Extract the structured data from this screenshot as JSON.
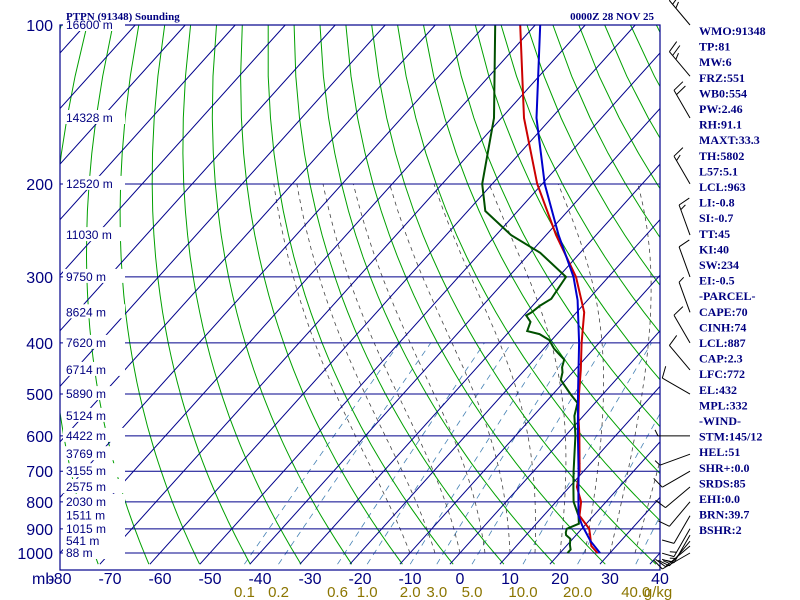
{
  "header": {
    "station_title": "PTPN (91348) Sounding",
    "valid_time": "0000Z 28 NOV 25"
  },
  "chart_data": {
    "type": "line",
    "title": "PTPN (91348) Sounding",
    "subtitle": "0000Z 28 NOV 25",
    "x_axis": {
      "label": "mb",
      "ticks": [
        "-80",
        "-70",
        "-60",
        "-50",
        "-40",
        "-30",
        "-20",
        "-10",
        "0",
        "10",
        "20",
        "30",
        "40"
      ],
      "range": [
        -80,
        40
      ]
    },
    "y_axis": {
      "scale": "log",
      "ticks": [
        "100",
        "200",
        "300",
        "400",
        "500",
        "600",
        "700",
        "800",
        "900",
        "1000"
      ],
      "range": [
        100,
        1050
      ]
    },
    "mixing_ratio_ticks": [
      "0.1",
      "0.2",
      "0.6",
      "1.0",
      "2.0",
      "3.0",
      "5.0",
      "10.0",
      "20.0",
      "40.0",
      "g/kg"
    ],
    "height_labels": [
      {
        "p": 100,
        "label": "16600 m"
      },
      {
        "p": 150,
        "label": "14328 m"
      },
      {
        "p": 200,
        "label": "12520 m"
      },
      {
        "p": 250,
        "label": "11030 m"
      },
      {
        "p": 300,
        "label": "9750 m"
      },
      {
        "p": 350,
        "label": "8624 m"
      },
      {
        "p": 400,
        "label": "7620 m"
      },
      {
        "p": 450,
        "label": "6714 m"
      },
      {
        "p": 500,
        "label": "5890 m"
      },
      {
        "p": 550,
        "label": "5124 m"
      },
      {
        "p": 600,
        "label": "4422 m"
      },
      {
        "p": 650,
        "label": "3769 m"
      },
      {
        "p": 700,
        "label": "3155 m"
      },
      {
        "p": 750,
        "label": "2575 m"
      },
      {
        "p": 800,
        "label": "2030 m"
      },
      {
        "p": 850,
        "label": "1511 m"
      },
      {
        "p": 900,
        "label": "1015 m"
      },
      {
        "p": 950,
        "label": "541 m"
      },
      {
        "p": 1000,
        "label": "88 m"
      }
    ],
    "series": [
      {
        "name": "Temperature",
        "color": "#cc0000",
        "points": [
          {
            "p": 1000,
            "t": 27.5
          },
          {
            "p": 970,
            "t": 25.0
          },
          {
            "p": 925,
            "t": 22.8
          },
          {
            "p": 900,
            "t": 21.5
          },
          {
            "p": 850,
            "t": 17.2
          },
          {
            "p": 800,
            "t": 15.0
          },
          {
            "p": 750,
            "t": 11.5
          },
          {
            "p": 700,
            "t": 9.2
          },
          {
            "p": 600,
            "t": 2.8
          },
          {
            "p": 550,
            "t": -1.0
          },
          {
            "p": 500,
            "t": -4.8
          },
          {
            "p": 450,
            "t": -8.8
          },
          {
            "p": 400,
            "t": -13.5
          },
          {
            "p": 350,
            "t": -18.5
          },
          {
            "p": 300,
            "t": -26.5
          },
          {
            "p": 250,
            "t": -38.0
          },
          {
            "p": 200,
            "t": -51.0
          },
          {
            "p": 150,
            "t": -65.5
          },
          {
            "p": 100,
            "t": -83.0
          }
        ]
      },
      {
        "name": "Dewpoint",
        "color": "#005000",
        "points": [
          {
            "p": 1000,
            "t": 21.5
          },
          {
            "p": 985,
            "t": 21.5
          },
          {
            "p": 965,
            "t": 20.5
          },
          {
            "p": 940,
            "t": 19.5
          },
          {
            "p": 925,
            "t": 18.0
          },
          {
            "p": 915,
            "t": 17.5
          },
          {
            "p": 900,
            "t": 17.0
          },
          {
            "p": 880,
            "t": 18.5
          },
          {
            "p": 850,
            "t": 17.0
          },
          {
            "p": 800,
            "t": 13.5
          },
          {
            "p": 750,
            "t": 10.8
          },
          {
            "p": 700,
            "t": 8.0
          },
          {
            "p": 600,
            "t": 2.0
          },
          {
            "p": 550,
            "t": -1.8
          },
          {
            "p": 520,
            "t": -3.5
          },
          {
            "p": 500,
            "t": -6.5
          },
          {
            "p": 480,
            "t": -9.5
          },
          {
            "p": 470,
            "t": -11.0
          },
          {
            "p": 455,
            "t": -12.0
          },
          {
            "p": 445,
            "t": -13.0
          },
          {
            "p": 430,
            "t": -14.0
          },
          {
            "p": 420,
            "t": -16.0
          },
          {
            "p": 410,
            "t": -18.0
          },
          {
            "p": 395,
            "t": -20.5
          },
          {
            "p": 385,
            "t": -23.5
          },
          {
            "p": 380,
            "t": -26.5
          },
          {
            "p": 365,
            "t": -27.5
          },
          {
            "p": 355,
            "t": -29.5
          },
          {
            "p": 350,
            "t": -29.0
          },
          {
            "p": 340,
            "t": -28.5
          },
          {
            "p": 330,
            "t": -27.5
          },
          {
            "p": 300,
            "t": -28.5
          },
          {
            "p": 270,
            "t": -38.0
          },
          {
            "p": 250,
            "t": -47.0
          },
          {
            "p": 225,
            "t": -56.5
          },
          {
            "p": 200,
            "t": -62.0
          },
          {
            "p": 150,
            "t": -71.5
          },
          {
            "p": 100,
            "t": -88.0
          }
        ]
      },
      {
        "name": "Parcel",
        "color": "#0000cc",
        "points": [
          {
            "p": 1000,
            "t": 28.0
          },
          {
            "p": 950,
            "t": 24.0
          },
          {
            "p": 887,
            "t": 19.5
          },
          {
            "p": 850,
            "t": 17.0
          },
          {
            "p": 772,
            "t": 13.0
          },
          {
            "p": 700,
            "t": 9.0
          },
          {
            "p": 600,
            "t": 2.5
          },
          {
            "p": 500,
            "t": -5.0
          },
          {
            "p": 400,
            "t": -14.0
          },
          {
            "p": 332,
            "t": -22.0
          },
          {
            "p": 300,
            "t": -27.0
          },
          {
            "p": 250,
            "t": -37.5
          },
          {
            "p": 200,
            "t": -49.5
          },
          {
            "p": 150,
            "t": -63.0
          },
          {
            "p": 100,
            "t": -79.0
          }
        ]
      }
    ],
    "wind_barbs": [
      {
        "p": 1000,
        "dir": 120,
        "spd": 10
      },
      {
        "p": 970,
        "dir": 130,
        "spd": 15
      },
      {
        "p": 950,
        "dir": 140,
        "spd": 15
      },
      {
        "p": 925,
        "dir": 150,
        "spd": 15
      },
      {
        "p": 900,
        "dir": 150,
        "spd": 15
      },
      {
        "p": 850,
        "dir": 150,
        "spd": 10
      },
      {
        "p": 800,
        "dir": 140,
        "spd": 10
      },
      {
        "p": 750,
        "dir": 130,
        "spd": 10
      },
      {
        "p": 700,
        "dir": 120,
        "spd": 10
      },
      {
        "p": 650,
        "dir": 110,
        "spd": 5
      },
      {
        "p": 600,
        "dir": 90,
        "spd": 5
      },
      {
        "p": 500,
        "dir": 60,
        "spd": 10
      },
      {
        "p": 450,
        "dir": 40,
        "spd": 10
      },
      {
        "p": 400,
        "dir": 30,
        "spd": 10
      },
      {
        "p": 350,
        "dir": 20,
        "spd": 5
      },
      {
        "p": 300,
        "dir": 20,
        "spd": 10
      },
      {
        "p": 250,
        "dir": 20,
        "spd": 15
      },
      {
        "p": 200,
        "dir": 30,
        "spd": 15
      },
      {
        "p": 150,
        "dir": 30,
        "spd": 20
      },
      {
        "p": 125,
        "dir": 40,
        "spd": 25
      },
      {
        "p": 100,
        "dir": 40,
        "spd": 25
      }
    ]
  },
  "indices": [
    "WMO:91348",
    "TP:81",
    "MW:6",
    "FRZ:551",
    "WB0:554",
    "PW:2.46",
    "RH:91.1",
    "MAXT:33.3",
    "TH:5802",
    "L57:5.1",
    "LCL:963",
    "LI:-0.8",
    "SI:-0.7",
    "TT:45",
    "KI:40",
    "SW:234",
    "EI:-0.5",
    "-PARCEL-",
    "CAPE:70",
    "CINH:74",
    "LCL:887",
    "CAP:2.3",
    "LFC:772",
    "EL:432",
    "MPL:332",
    "-WIND-",
    "STM:145/12",
    "HEL:51",
    "SHR+:0.0",
    "SRDS:85",
    "EHI:0.0",
    "BRN:39.7",
    "BSHR:2"
  ],
  "colors": {
    "frame": "#00008b",
    "isotherm": "#00008b",
    "dry_adiabat": "#00a000",
    "moist_adiabat": "#444444",
    "mixing_ratio": "#4682b4",
    "temperature": "#cc0000",
    "dewpoint": "#005000",
    "parcel": "#0000cc",
    "mixing_ratio_text": "#8b7500"
  }
}
